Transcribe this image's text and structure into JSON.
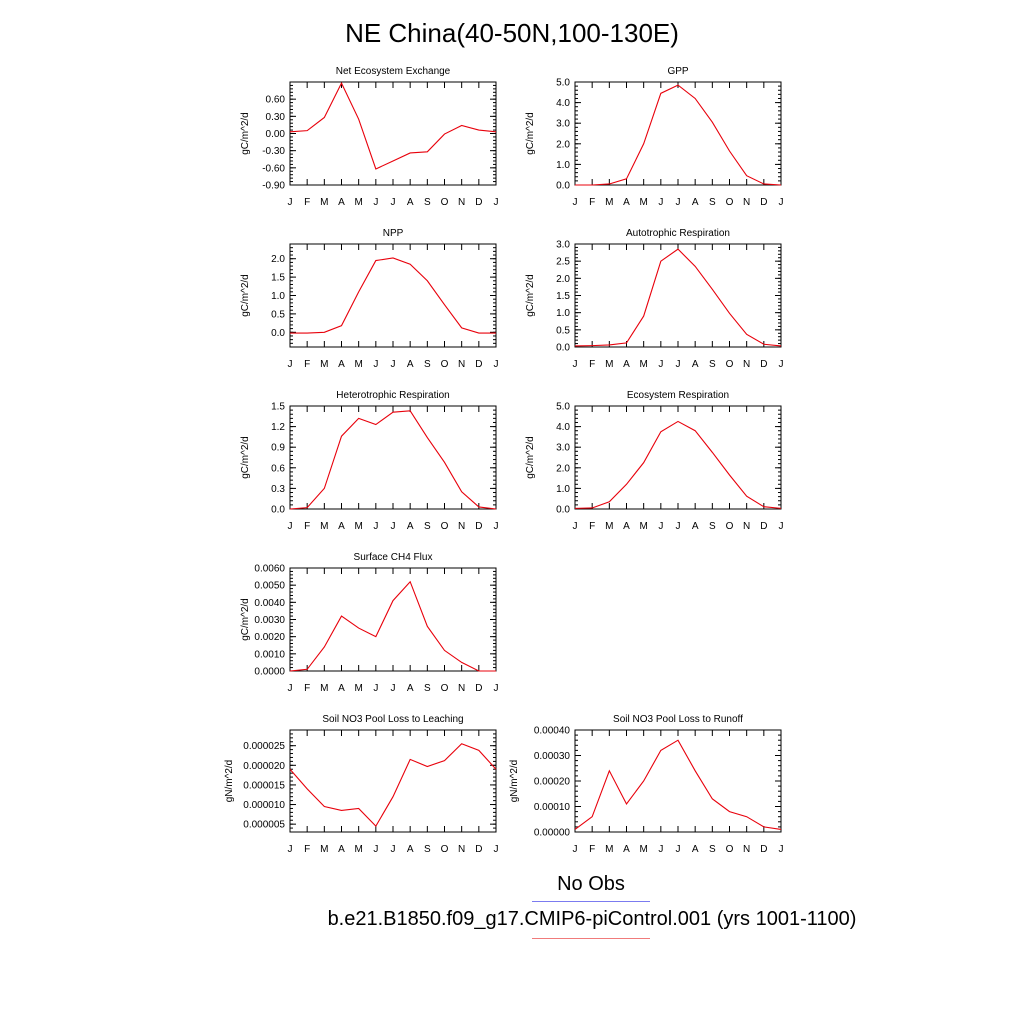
{
  "title": "NE China(40-50N,100-130E)",
  "months": [
    "J",
    "F",
    "M",
    "A",
    "M",
    "J",
    "J",
    "A",
    "S",
    "O",
    "N",
    "D",
    "J"
  ],
  "legend": [
    {
      "label": "No Obs",
      "color": "#7b7bf0"
    },
    {
      "label": "b.e21.B1850.f09_g17.CMIP6-piControl.001 (yrs 1001-1100)",
      "color": "#f07b7b"
    }
  ],
  "series_color": "#e8000b",
  "chart_data": [
    {
      "type": "line",
      "title": "Net Ecosystem Exchange",
      "ylabel": "gC/m^2/d",
      "ylim": [
        -0.9,
        0.9
      ],
      "yticks": [
        -0.9,
        -0.6,
        -0.3,
        0.0,
        0.3,
        0.6
      ],
      "ytick_labels": [
        "-0.90",
        "-0.60",
        "-0.30",
        "0.00",
        "0.30",
        "0.60"
      ],
      "values": [
        0.03,
        0.05,
        0.28,
        0.88,
        0.25,
        -0.62,
        -0.48,
        -0.34,
        -0.32,
        -0.01,
        0.14,
        0.06,
        0.03
      ]
    },
    {
      "type": "line",
      "title": "GPP",
      "ylabel": "gC/m^2/d",
      "ylim": [
        0,
        5
      ],
      "yticks": [
        0,
        1,
        2,
        3,
        4,
        5
      ],
      "ytick_labels": [
        "0.0",
        "1.0",
        "2.0",
        "3.0",
        "4.0",
        "5.0"
      ],
      "values": [
        0.0,
        0.0,
        0.05,
        0.3,
        2.0,
        4.45,
        4.85,
        4.2,
        3.05,
        1.65,
        0.45,
        0.05,
        0.0
      ]
    },
    {
      "type": "line",
      "title": "NPP",
      "ylabel": "gC/m^2/d",
      "ylim": [
        -0.4,
        2.4
      ],
      "yticks": [
        0,
        0.5,
        1.0,
        1.5,
        2.0
      ],
      "ytick_labels": [
        "0.0",
        "0.5",
        "1.0",
        "1.5",
        "2.0"
      ],
      "values": [
        -0.02,
        -0.02,
        0.0,
        0.18,
        1.1,
        1.95,
        2.02,
        1.85,
        1.4,
        0.75,
        0.12,
        -0.02,
        -0.02
      ]
    },
    {
      "type": "line",
      "title": "Autotrophic Respiration",
      "ylabel": "gC/m^2/d",
      "ylim": [
        0,
        3
      ],
      "yticks": [
        0,
        0.5,
        1.0,
        1.5,
        2.0,
        2.5,
        3.0
      ],
      "ytick_labels": [
        "0.0",
        "0.5",
        "1.0",
        "1.5",
        "2.0",
        "2.5",
        "3.0"
      ],
      "values": [
        0.03,
        0.04,
        0.06,
        0.12,
        0.9,
        2.5,
        2.85,
        2.35,
        1.68,
        0.98,
        0.37,
        0.08,
        0.03
      ]
    },
    {
      "type": "line",
      "title": "Heterotrophic Respiration",
      "ylabel": "gC/m^2/d",
      "ylim": [
        0,
        1.5
      ],
      "yticks": [
        0,
        0.3,
        0.6,
        0.9,
        1.2,
        1.5
      ],
      "ytick_labels": [
        "0.0",
        "0.3",
        "0.6",
        "0.9",
        "1.2",
        "1.5"
      ],
      "values": [
        0.0,
        0.02,
        0.3,
        1.06,
        1.32,
        1.23,
        1.41,
        1.43,
        1.04,
        0.68,
        0.25,
        0.03,
        0.0
      ]
    },
    {
      "type": "line",
      "title": "Ecosystem Respiration",
      "ylabel": "gC/m^2/d",
      "ylim": [
        0,
        5
      ],
      "yticks": [
        0,
        1,
        2,
        3,
        4,
        5
      ],
      "ytick_labels": [
        "0.0",
        "1.0",
        "2.0",
        "3.0",
        "4.0",
        "5.0"
      ],
      "values": [
        0.03,
        0.05,
        0.35,
        1.2,
        2.25,
        3.75,
        4.25,
        3.8,
        2.75,
        1.65,
        0.62,
        0.11,
        0.03
      ]
    },
    {
      "type": "line",
      "title": "Surface CH4 Flux",
      "ylabel": "gC/m^2/d",
      "ylim": [
        0,
        0.006
      ],
      "yticks": [
        0,
        0.001,
        0.002,
        0.003,
        0.004,
        0.005,
        0.006
      ],
      "ytick_labels": [
        "0.0000",
        "0.0010",
        "0.0020",
        "0.0030",
        "0.0040",
        "0.0050",
        "0.0060"
      ],
      "values": [
        0.0,
        0.0001,
        0.0014,
        0.0032,
        0.0025,
        0.002,
        0.0041,
        0.0052,
        0.0026,
        0.0012,
        0.0005,
        0.0,
        0.0
      ]
    },
    {
      "type": "line",
      "title": "Soil NO3 Pool Loss to Leaching",
      "ylabel": "gN/m^2/d",
      "ylim": [
        3e-06,
        2.9e-05
      ],
      "yticks": [
        5e-06,
        1e-05,
        1.5e-05,
        2e-05,
        2.5e-05
      ],
      "ytick_labels": [
        "0.000005",
        "0.000010",
        "0.000015",
        "0.000020",
        "0.000025"
      ],
      "values": [
        1.9e-05,
        1.4e-05,
        9.5e-06,
        8.5e-06,
        9e-06,
        4.5e-06,
        1.2e-05,
        2.15e-05,
        1.97e-05,
        2.12e-05,
        2.55e-05,
        2.38e-05,
        1.9e-05
      ]
    },
    {
      "type": "line",
      "title": "Soil NO3 Pool Loss to Runoff",
      "ylabel": "gN/m^2/d",
      "ylim": [
        0,
        0.0004
      ],
      "yticks": [
        0,
        0.0001,
        0.0002,
        0.0003,
        0.0004
      ],
      "ytick_labels": [
        "0.00000",
        "0.00010",
        "0.00020",
        "0.00030",
        "0.00040"
      ],
      "values": [
        1e-05,
        6e-05,
        0.00024,
        0.00011,
        0.0002,
        0.00032,
        0.00036,
        0.00024,
        0.00013,
        8e-05,
        6e-05,
        2e-05,
        1e-05
      ]
    }
  ]
}
